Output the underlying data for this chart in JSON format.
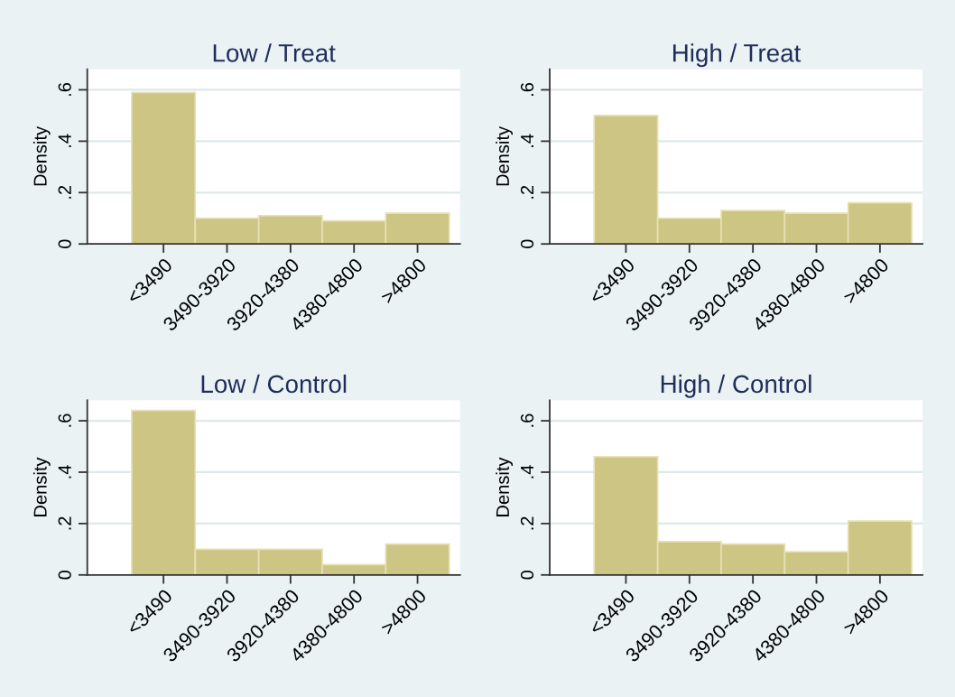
{
  "chart_data": [
    {
      "type": "bar",
      "title": "Low / Treat",
      "ylabel": "Density",
      "categories": [
        "<3490",
        "3490-3920",
        "3920-4380",
        "4380-4800",
        ">4800"
      ],
      "values": [
        0.59,
        0.1,
        0.11,
        0.09,
        0.12
      ],
      "color": "#cdc583",
      "ylim": [
        0,
        0.68
      ],
      "yticks": [
        0,
        {
          "value": 0.2,
          "label": ".2"
        },
        {
          "value": 0.4,
          "label": ".4"
        },
        {
          "value": 0.6,
          "label": ".6"
        }
      ],
      "grid": "y"
    },
    {
      "type": "bar",
      "title": "High / Treat",
      "ylabel": "Density",
      "categories": [
        "<3490",
        "3490-3920",
        "3920-4380",
        "4380-4800",
        ">4800"
      ],
      "values": [
        0.5,
        0.1,
        0.13,
        0.12,
        0.16
      ],
      "color": "#cdc583",
      "ylim": [
        0,
        0.68
      ],
      "yticks": [
        0,
        {
          "value": 0.2,
          "label": ".2"
        },
        {
          "value": 0.4,
          "label": ".4"
        },
        {
          "value": 0.6,
          "label": ".6"
        }
      ],
      "grid": "y"
    },
    {
      "type": "bar",
      "title": "Low / Control",
      "ylabel": "Density",
      "categories": [
        "<3490",
        "3490-3920",
        "3920-4380",
        "4380-4800",
        ">4800"
      ],
      "values": [
        0.64,
        0.1,
        0.1,
        0.04,
        0.12
      ],
      "color": "#cdc583",
      "ylim": [
        0,
        0.68
      ],
      "yticks": [
        0,
        {
          "value": 0.2,
          "label": ".2"
        },
        {
          "value": 0.4,
          "label": ".4"
        },
        {
          "value": 0.6,
          "label": ".6"
        }
      ],
      "grid": "y"
    },
    {
      "type": "bar",
      "title": "High / Control",
      "ylabel": "Density",
      "categories": [
        "<3490",
        "3490-3920",
        "3920-4380",
        "4380-4800",
        ">4800"
      ],
      "values": [
        0.46,
        0.13,
        0.12,
        0.09,
        0.21
      ],
      "color": "#cdc583",
      "ylim": [
        0,
        0.68
      ],
      "yticks": [
        0,
        {
          "value": 0.2,
          "label": ".2"
        },
        {
          "value": 0.4,
          "label": ".4"
        },
        {
          "value": 0.6,
          "label": ".6"
        }
      ],
      "grid": "y"
    }
  ]
}
